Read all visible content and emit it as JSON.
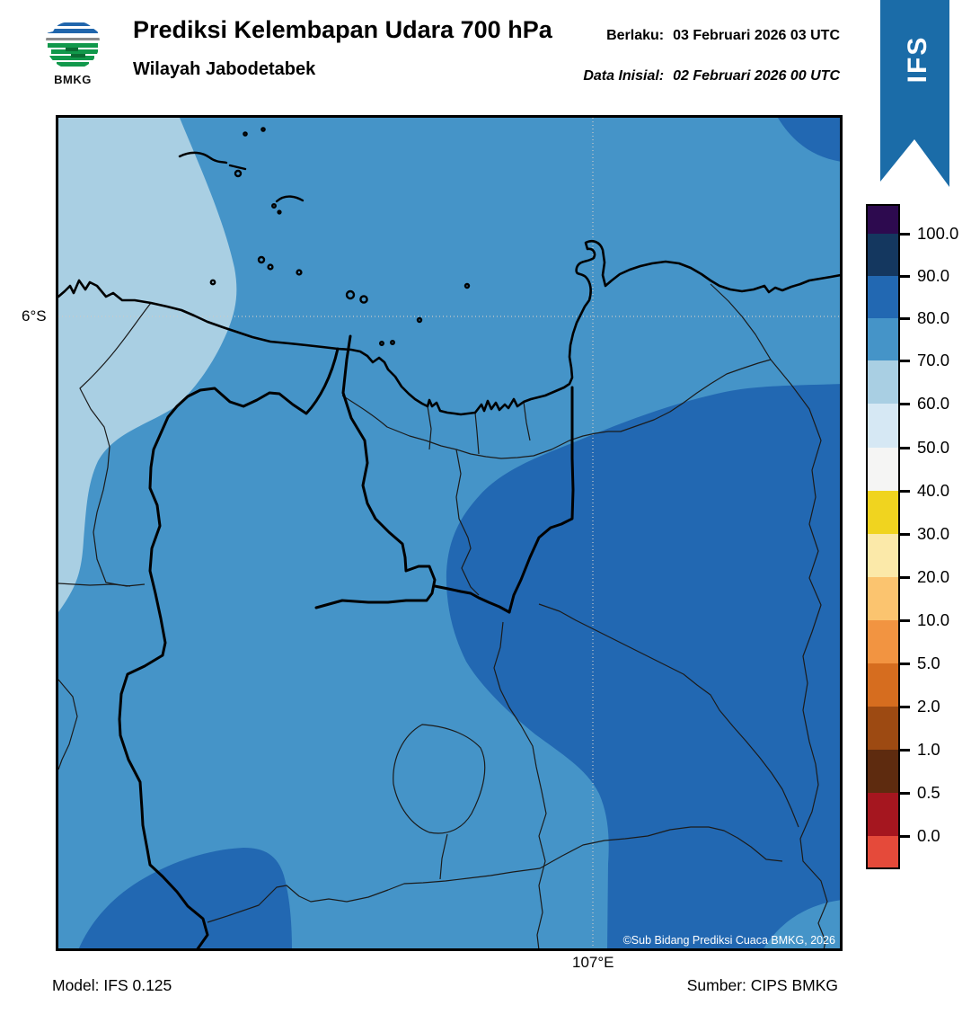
{
  "header": {
    "logo_text": "BMKG",
    "title": "Prediksi Kelembapan Udara 700 hPa",
    "subtitle": "Wilayah Jabodetabek",
    "valid_label": "Berlaku:",
    "valid_value": "03 Februari 2026 03 UTC",
    "init_label": "Data Inisial:",
    "init_value": "02 Februari 2026 00 UTC",
    "ribbon_label": "IFS",
    "ribbon_color": "#1b6ca8"
  },
  "map": {
    "lat_label": "6°S",
    "lon_label": "107°E",
    "copyright": "©Sub Bidang Prediksi Cuaca BMKG, 2026",
    "colors": {
      "base_70_80": "#4594c8",
      "light_60_70": "#a9cfe3",
      "dark_80_90": "#2268b2",
      "gridline": "#c9c9c9",
      "coast": "#000000",
      "admin": "#1b1b1b"
    }
  },
  "footer": {
    "model": "Model: IFS 0.125",
    "source": "Sumber: CIPS BMKG"
  },
  "colorbar": {
    "tick_labels": [
      "100.0",
      "90.0",
      "80.0",
      "70.0",
      "60.0",
      "50.0",
      "40.0",
      "30.0",
      "20.0",
      "10.0",
      "5.0",
      "2.0",
      "1.0",
      "0.5",
      "0.0"
    ],
    "segment_colors": [
      "#2d0a4f",
      "#14375f",
      "#2268b2",
      "#4594c8",
      "#a9cfe3",
      "#d6e8f4",
      "#f5f5f4",
      "#f0d41f",
      "#fbe9a9",
      "#fbc46f",
      "#f29441",
      "#d66d1f",
      "#9d4a12",
      "#5e2b0f",
      "#a5161f",
      "#e54a3a"
    ],
    "segment_heights": [
      31,
      47,
      47,
      47,
      48,
      49,
      48,
      48,
      48,
      48,
      48,
      48,
      48,
      48,
      48,
      35
    ]
  }
}
